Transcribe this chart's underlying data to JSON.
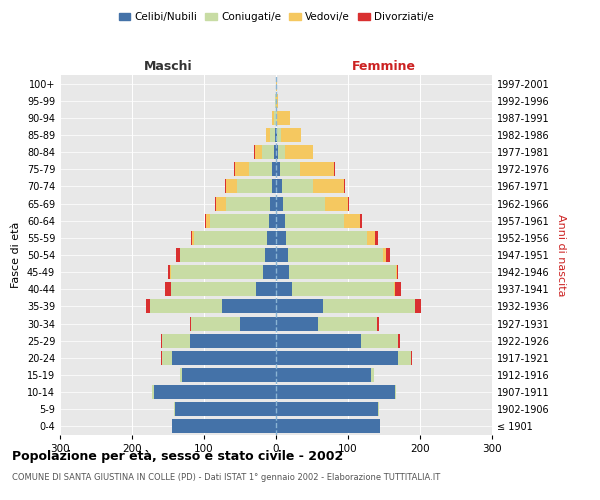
{
  "age_groups": [
    "100+",
    "95-99",
    "90-94",
    "85-89",
    "80-84",
    "75-79",
    "70-74",
    "65-69",
    "60-64",
    "55-59",
    "50-54",
    "45-49",
    "40-44",
    "35-39",
    "30-34",
    "25-29",
    "20-24",
    "15-19",
    "10-14",
    "5-9",
    "0-4"
  ],
  "birth_years": [
    "≤ 1901",
    "1902-1906",
    "1907-1911",
    "1912-1916",
    "1917-1921",
    "1922-1926",
    "1927-1931",
    "1932-1936",
    "1937-1941",
    "1942-1946",
    "1947-1951",
    "1952-1956",
    "1957-1961",
    "1962-1966",
    "1967-1971",
    "1972-1976",
    "1977-1981",
    "1982-1986",
    "1987-1991",
    "1992-1996",
    "1997-2001"
  ],
  "male_celibi": [
    0,
    0,
    0,
    2,
    3,
    5,
    6,
    8,
    10,
    12,
    15,
    18,
    28,
    75,
    50,
    120,
    145,
    130,
    170,
    140,
    145
  ],
  "male_coniugati": [
    0,
    1,
    3,
    7,
    16,
    32,
    48,
    62,
    82,
    102,
    118,
    128,
    118,
    100,
    68,
    38,
    14,
    4,
    2,
    1,
    0
  ],
  "male_vedovi": [
    0,
    0,
    2,
    5,
    10,
    20,
    16,
    13,
    5,
    2,
    1,
    1,
    0,
    0,
    0,
    0,
    0,
    0,
    0,
    0,
    0
  ],
  "male_divorziati": [
    0,
    0,
    0,
    0,
    1,
    1,
    1,
    2,
    2,
    2,
    5,
    3,
    8,
    5,
    2,
    2,
    1,
    0,
    0,
    0,
    0
  ],
  "female_celibi": [
    0,
    0,
    0,
    2,
    3,
    5,
    8,
    10,
    12,
    14,
    16,
    18,
    22,
    65,
    58,
    118,
    170,
    132,
    165,
    142,
    145
  ],
  "female_coniugati": [
    0,
    0,
    2,
    5,
    10,
    28,
    44,
    58,
    82,
    112,
    132,
    148,
    142,
    128,
    82,
    52,
    18,
    4,
    2,
    1,
    0
  ],
  "female_vedovi": [
    1,
    3,
    18,
    28,
    38,
    48,
    42,
    32,
    22,
    12,
    5,
    2,
    1,
    0,
    0,
    0,
    0,
    0,
    0,
    0,
    0
  ],
  "female_divorziati": [
    0,
    0,
    0,
    0,
    1,
    1,
    2,
    2,
    3,
    3,
    5,
    2,
    8,
    8,
    3,
    2,
    1,
    0,
    0,
    0,
    0
  ],
  "colors": {
    "celibi": "#4472a8",
    "coniugati": "#c8dca4",
    "vedovi": "#f5c860",
    "divorziati": "#d93030"
  },
  "title": "Popolazione per età, sesso e stato civile - 2002",
  "subtitle": "COMUNE DI SANTA GIUSTINA IN COLLE (PD) - Dati ISTAT 1° gennaio 2002 - Elaborazione TUTTITALIA.IT",
  "xlabel_left": "Maschi",
  "xlabel_right": "Femmine",
  "ylabel_left": "Fasce di età",
  "ylabel_right": "Anni di nascita",
  "xlim": 300,
  "bg_color": "#ffffff",
  "plot_bg": "#e8e8e8"
}
